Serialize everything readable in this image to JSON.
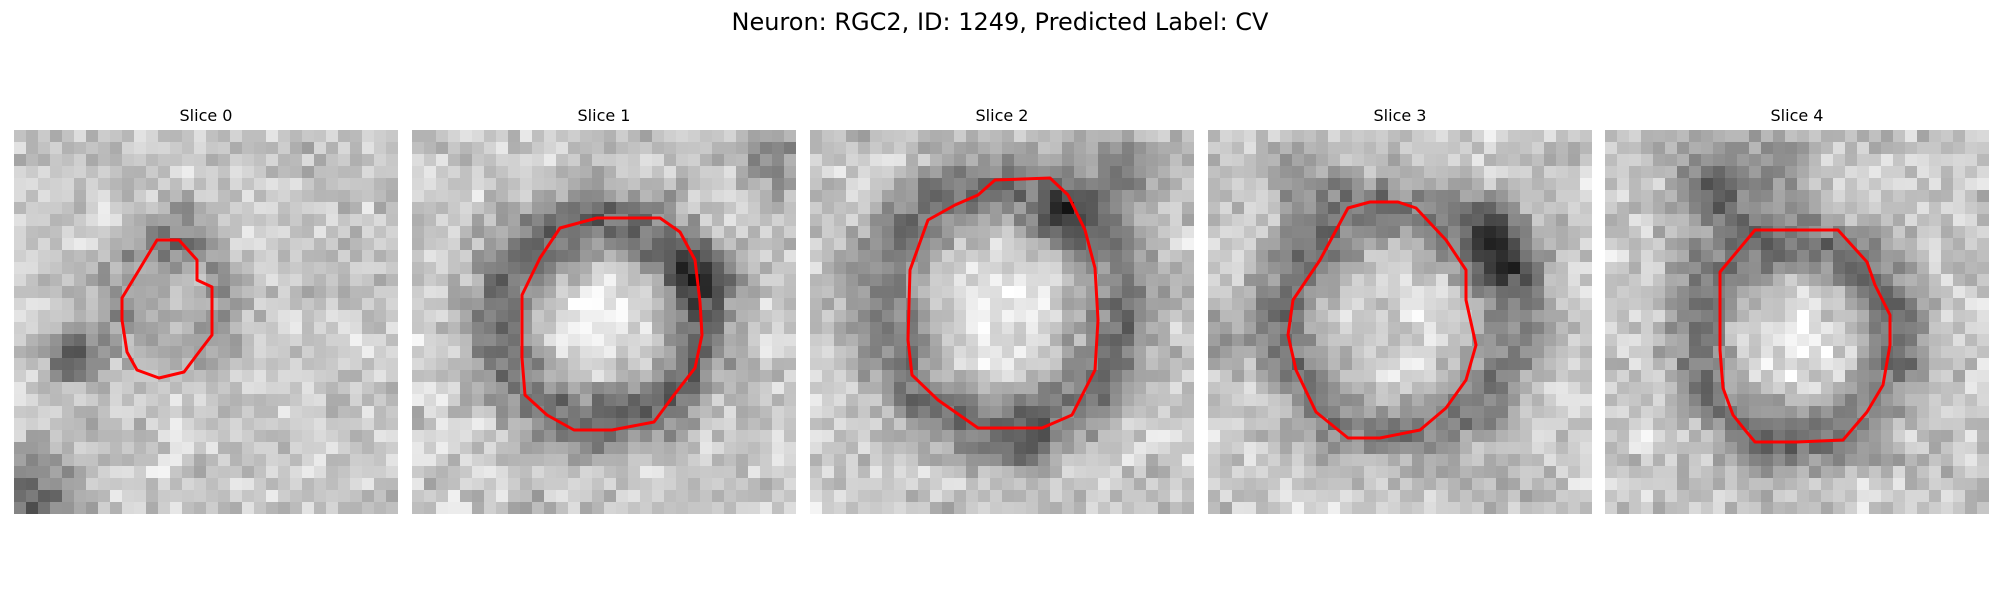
{
  "figure": {
    "title": "Neuron: RGC2, ID: 1249, Predicted Label: CV"
  },
  "panels": [
    {
      "title": "Slice 0"
    },
    {
      "title": "Slice 1"
    },
    {
      "title": "Slice 2"
    },
    {
      "title": "Slice 3"
    },
    {
      "title": "Slice 4"
    }
  ],
  "colors": {
    "contour": "#ff0000",
    "background": "#ffffff"
  }
}
